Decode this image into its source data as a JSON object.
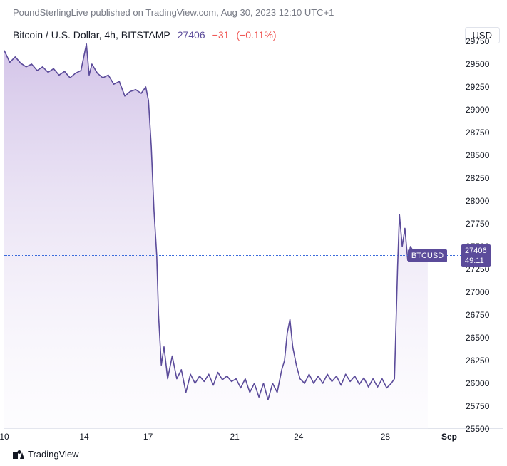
{
  "attribution": "PoundSterlingLive published on TradingView.com, Aug 30, 2023 12:10 UTC+1",
  "header": {
    "symbol_title": "Bitcoin / U.S. Dollar, 4h, BITSTAMP",
    "last_price": "27406",
    "change_abs": "−31",
    "change_pct": "(−0.11%)",
    "currency_badge": "USD"
  },
  "chart": {
    "type": "area",
    "line_color": "#5b4b9a",
    "line_width": 1.6,
    "fill_top_color": "#cbb9e4",
    "fill_bottom_color": "#f5f2fb",
    "fill_opacity": 0.85,
    "background_color": "#ffffff",
    "grid_color": "#e0e3eb",
    "dotted_line_color": "#3a6bdb",
    "y": {
      "min": 25500,
      "max": 29750,
      "tick_step": 250,
      "ticks": [
        29750,
        29500,
        29250,
        29000,
        28750,
        28500,
        28250,
        28000,
        27750,
        27500,
        27250,
        27000,
        26750,
        26500,
        26250,
        26000,
        25750,
        25500
      ]
    },
    "x": {
      "ticks": [
        {
          "label": "10",
          "t": 0.0,
          "bold": false
        },
        {
          "label": "14",
          "t": 0.175,
          "bold": false
        },
        {
          "label": "17",
          "t": 0.315,
          "bold": false
        },
        {
          "label": "21",
          "t": 0.505,
          "bold": false
        },
        {
          "label": "24",
          "t": 0.645,
          "bold": false
        },
        {
          "label": "28",
          "t": 0.835,
          "bold": false
        },
        {
          "label": "Sep",
          "t": 0.975,
          "bold": true
        }
      ]
    },
    "current": {
      "value": 27406,
      "symbol": "BTCUSD",
      "countdown": "49:11",
      "tag_bg": "#5b4b9a",
      "tag_fg": "#ffffff"
    },
    "series": [
      [
        0.0,
        29650
      ],
      [
        0.012,
        29520
      ],
      [
        0.024,
        29580
      ],
      [
        0.036,
        29510
      ],
      [
        0.048,
        29470
      ],
      [
        0.06,
        29500
      ],
      [
        0.072,
        29430
      ],
      [
        0.084,
        29470
      ],
      [
        0.096,
        29410
      ],
      [
        0.108,
        29450
      ],
      [
        0.12,
        29380
      ],
      [
        0.132,
        29420
      ],
      [
        0.144,
        29350
      ],
      [
        0.156,
        29400
      ],
      [
        0.168,
        29430
      ],
      [
        0.18,
        29720
      ],
      [
        0.186,
        29380
      ],
      [
        0.192,
        29500
      ],
      [
        0.204,
        29400
      ],
      [
        0.216,
        29350
      ],
      [
        0.228,
        29380
      ],
      [
        0.24,
        29280
      ],
      [
        0.252,
        29310
      ],
      [
        0.264,
        29150
      ],
      [
        0.276,
        29200
      ],
      [
        0.288,
        29220
      ],
      [
        0.3,
        29180
      ],
      [
        0.31,
        29250
      ],
      [
        0.316,
        29100
      ],
      [
        0.322,
        28600
      ],
      [
        0.328,
        27900
      ],
      [
        0.334,
        27400
      ],
      [
        0.338,
        26750
      ],
      [
        0.344,
        26200
      ],
      [
        0.35,
        26400
      ],
      [
        0.358,
        26050
      ],
      [
        0.368,
        26300
      ],
      [
        0.378,
        26050
      ],
      [
        0.388,
        26150
      ],
      [
        0.398,
        25900
      ],
      [
        0.408,
        26100
      ],
      [
        0.418,
        26000
      ],
      [
        0.428,
        26080
      ],
      [
        0.438,
        26020
      ],
      [
        0.448,
        26100
      ],
      [
        0.458,
        25980
      ],
      [
        0.468,
        26120
      ],
      [
        0.478,
        26040
      ],
      [
        0.488,
        26080
      ],
      [
        0.498,
        26020
      ],
      [
        0.508,
        26050
      ],
      [
        0.518,
        25950
      ],
      [
        0.528,
        26050
      ],
      [
        0.538,
        25900
      ],
      [
        0.548,
        26000
      ],
      [
        0.558,
        25850
      ],
      [
        0.568,
        26000
      ],
      [
        0.578,
        25820
      ],
      [
        0.588,
        26000
      ],
      [
        0.598,
        25900
      ],
      [
        0.608,
        26150
      ],
      [
        0.614,
        26250
      ],
      [
        0.62,
        26550
      ],
      [
        0.626,
        26700
      ],
      [
        0.632,
        26400
      ],
      [
        0.64,
        26200
      ],
      [
        0.648,
        26050
      ],
      [
        0.658,
        26000
      ],
      [
        0.668,
        26100
      ],
      [
        0.678,
        26000
      ],
      [
        0.688,
        26080
      ],
      [
        0.698,
        26000
      ],
      [
        0.708,
        26100
      ],
      [
        0.718,
        26020
      ],
      [
        0.728,
        26080
      ],
      [
        0.738,
        25980
      ],
      [
        0.748,
        26100
      ],
      [
        0.758,
        26020
      ],
      [
        0.768,
        26080
      ],
      [
        0.778,
        25990
      ],
      [
        0.788,
        26060
      ],
      [
        0.798,
        25960
      ],
      [
        0.808,
        26050
      ],
      [
        0.818,
        25960
      ],
      [
        0.828,
        26050
      ],
      [
        0.838,
        25950
      ],
      [
        0.848,
        26000
      ],
      [
        0.855,
        26050
      ],
      [
        0.862,
        27300
      ],
      [
        0.866,
        27850
      ],
      [
        0.872,
        27500
      ],
      [
        0.878,
        27700
      ],
      [
        0.884,
        27350
      ],
      [
        0.89,
        27500
      ],
      [
        0.9,
        27420
      ],
      [
        0.91,
        27450
      ],
      [
        0.92,
        27400
      ],
      [
        0.928,
        27406
      ]
    ]
  },
  "footer": {
    "logo_text": "TradingView"
  }
}
